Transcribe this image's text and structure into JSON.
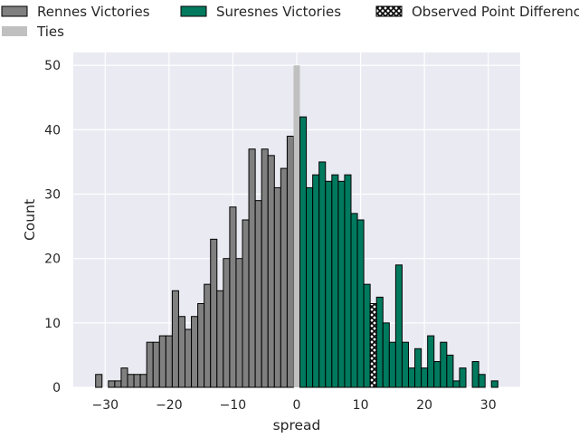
{
  "chart_data": {
    "type": "bar",
    "xlabel": "spread",
    "ylabel": "Count",
    "xlim": [
      -35,
      35
    ],
    "ylim": [
      0,
      52
    ],
    "xticks": [
      -30,
      -20,
      -10,
      0,
      10,
      20,
      30
    ],
    "yticks": [
      0,
      10,
      20,
      30,
      40,
      50
    ],
    "grid": true,
    "background": "#eaeaf2",
    "legend": {
      "placement": "top",
      "entries": [
        {
          "label": "Rennes Victories",
          "color": "#808080",
          "style": "solid"
        },
        {
          "label": "Suresnes Victories",
          "color": "#007a5e",
          "style": "solid"
        },
        {
          "label": "Observed Point Difference",
          "color": "#000000",
          "style": "hatch"
        },
        {
          "label": "Ties",
          "color": "#c0c0c0",
          "style": "solid"
        }
      ]
    },
    "series": [
      {
        "name": "Rennes Victories",
        "color": "#808080",
        "x": [
          -31,
          -30,
          -29,
          -28,
          -27,
          -26,
          -25,
          -24,
          -23,
          -22,
          -21,
          -20,
          -19,
          -18,
          -17,
          -16,
          -15,
          -14,
          -13,
          -12,
          -11,
          -10,
          -9,
          -8,
          -7,
          -6,
          -5,
          -4,
          -3,
          -2,
          -1
        ],
        "values": [
          2,
          0,
          1,
          1,
          3,
          2,
          2,
          2,
          7,
          7,
          8,
          8,
          15,
          11,
          9,
          11,
          13,
          16,
          23,
          15,
          20,
          28,
          20,
          26,
          37,
          29,
          37,
          36,
          31,
          34,
          39
        ]
      },
      {
        "name": "Ties",
        "color": "#c0c0c0",
        "x": [
          0
        ],
        "values": [
          50
        ]
      },
      {
        "name": "Suresnes Victories",
        "color": "#007a5e",
        "x": [
          1,
          2,
          3,
          4,
          5,
          6,
          7,
          8,
          9,
          10,
          11,
          12,
          13,
          14,
          15,
          16,
          17,
          18,
          19,
          20,
          21,
          22,
          23,
          24,
          25,
          26,
          27,
          28,
          29,
          30,
          31
        ],
        "values": [
          42,
          31,
          33,
          35,
          32,
          33,
          32,
          33,
          27,
          26,
          16,
          0,
          14,
          10,
          7,
          19,
          7,
          3,
          6,
          3,
          8,
          4,
          7,
          5,
          1,
          3,
          0,
          4,
          2,
          0,
          1
        ]
      },
      {
        "name": "Observed Point Difference",
        "color": "#000000",
        "x": [
          12
        ],
        "values": [
          13
        ]
      }
    ]
  }
}
